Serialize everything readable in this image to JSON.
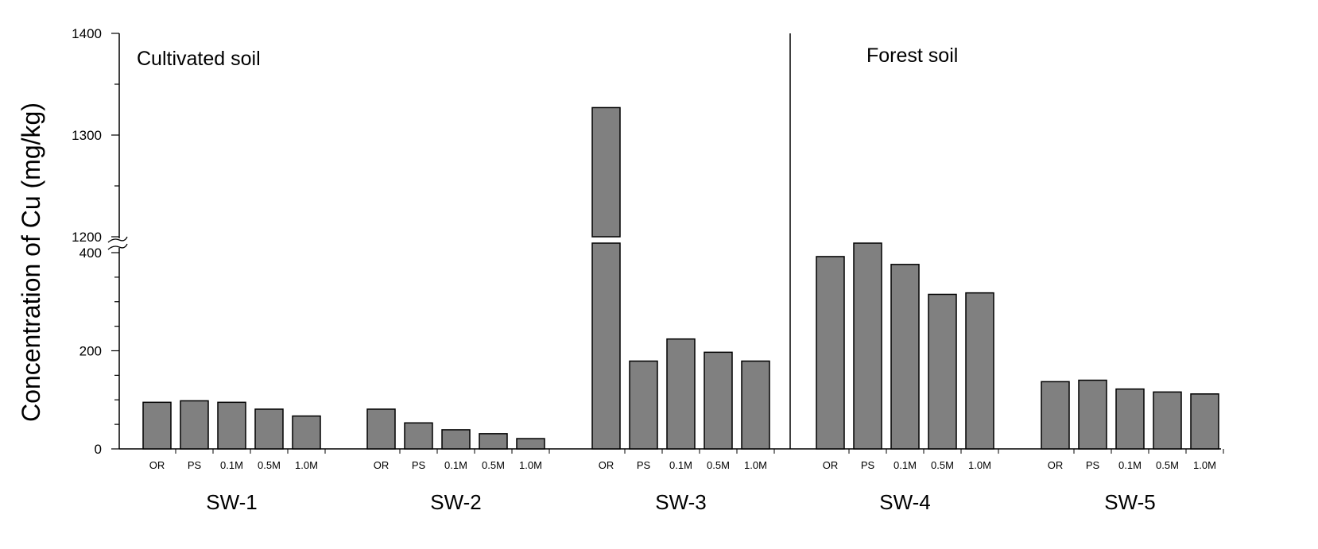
{
  "chart_data": {
    "type": "bar",
    "ylabel": "Concentration of Cu (mg/kg)",
    "y_axis_break": [
      400,
      1200
    ],
    "ylim_lower": [
      0,
      400
    ],
    "ylim_upper": [
      1200,
      1400
    ],
    "yticks_lower": [
      "0",
      "200",
      "400"
    ],
    "yticks_upper": [
      "1200",
      "1300",
      "1400"
    ],
    "grid": false,
    "bar_color": "#808080",
    "sections": [
      {
        "label": "Cultivated soil",
        "groups": [
          "SW-1",
          "SW-2",
          "SW-3"
        ]
      },
      {
        "label": "Forest soil",
        "groups": [
          "SW-4",
          "SW-5"
        ]
      }
    ],
    "categories": [
      "OR",
      "PS",
      "0.1M",
      "0.5M",
      "1.0M"
    ],
    "groups": [
      {
        "name": "SW-1",
        "values": [
          95,
          98,
          95,
          81,
          67
        ]
      },
      {
        "name": "SW-2",
        "values": [
          81,
          53,
          39,
          31,
          21
        ]
      },
      {
        "name": "SW-3",
        "values": [
          1327,
          179,
          224,
          197,
          179
        ]
      },
      {
        "name": "SW-4",
        "values": [
          392,
          405,
          376,
          315,
          318
        ]
      },
      {
        "name": "SW-5",
        "values": [
          137,
          140,
          122,
          116,
          112
        ]
      }
    ]
  }
}
